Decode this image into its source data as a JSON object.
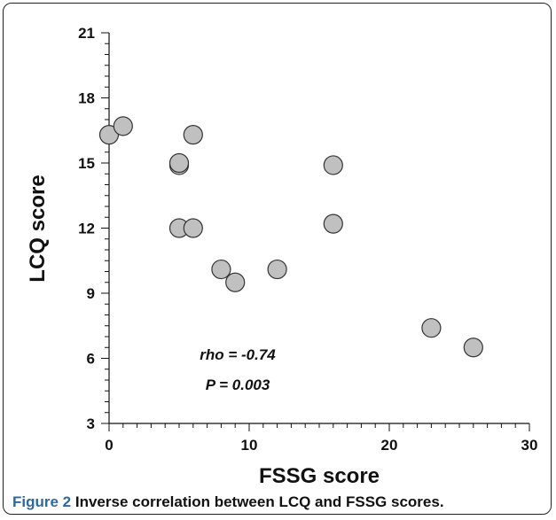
{
  "chart_data": {
    "type": "scatter",
    "xlabel": "FSSG score",
    "ylabel": "LCQ score",
    "xlim": [
      0,
      30
    ],
    "ylim": [
      3,
      21
    ],
    "xticks": [
      0,
      10,
      20,
      30
    ],
    "yticks": [
      3,
      6,
      9,
      12,
      15,
      18,
      21
    ],
    "grid": false,
    "points": [
      {
        "x": 0,
        "y": 16.3
      },
      {
        "x": 1,
        "y": 16.7
      },
      {
        "x": 5,
        "y": 14.9
      },
      {
        "x": 5,
        "y": 15.0
      },
      {
        "x": 6,
        "y": 16.3
      },
      {
        "x": 5,
        "y": 12.0
      },
      {
        "x": 6,
        "y": 12.0
      },
      {
        "x": 8,
        "y": 10.1
      },
      {
        "x": 9,
        "y": 9.5
      },
      {
        "x": 12,
        "y": 10.1
      },
      {
        "x": 16,
        "y": 14.9
      },
      {
        "x": 16,
        "y": 12.2
      },
      {
        "x": 23,
        "y": 7.4
      },
      {
        "x": 26,
        "y": 6.5
      }
    ],
    "annotations": [
      "rho = -0.74",
      "P = 0.003"
    ],
    "marker_color": "#c0c0c0"
  },
  "caption": {
    "label": "Figure 2",
    "text": "Inverse correlation between LCQ and FSSG scores."
  }
}
